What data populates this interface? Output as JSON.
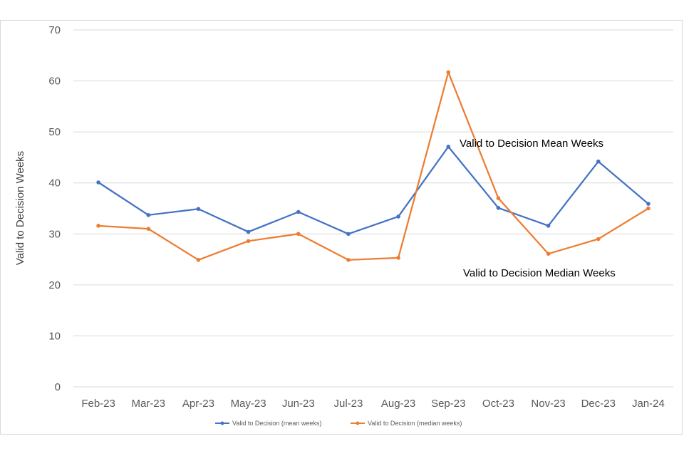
{
  "chart_data": {
    "type": "line",
    "title": "",
    "xlabel": "",
    "ylabel": "Valid to Decision Weeks",
    "ylim": [
      0,
      70
    ],
    "yticks": [
      0,
      10,
      20,
      30,
      40,
      50,
      60,
      70
    ],
    "grid": true,
    "legend_position": "bottom",
    "categories": [
      "Feb-23",
      "Mar-23",
      "Apr-23",
      "May-23",
      "Jun-23",
      "Jul-23",
      "Aug-23",
      "Sep-23",
      "Oct-23",
      "Nov-23",
      "Dec-23",
      "Jan-24"
    ],
    "series": [
      {
        "name": "Valid to Decision (mean weeks)",
        "color": "#4472C4",
        "values": [
          40.1,
          33.7,
          34.9,
          30.4,
          34.3,
          30.0,
          33.4,
          47.1,
          35.1,
          31.6,
          44.2,
          35.9
        ]
      },
      {
        "name": "Valid to Decision (median weeks)",
        "color": "#ED7D31",
        "values": [
          31.6,
          31.0,
          24.9,
          28.6,
          30.0,
          24.9,
          25.3,
          61.7,
          37.0,
          26.1,
          29.0,
          35.0
        ]
      }
    ],
    "annotations": [
      {
        "text": "Valid to Decision Mean Weeks",
        "series": 0
      },
      {
        "text": "Valid to Decision Median Weeks",
        "series": 1
      }
    ]
  }
}
